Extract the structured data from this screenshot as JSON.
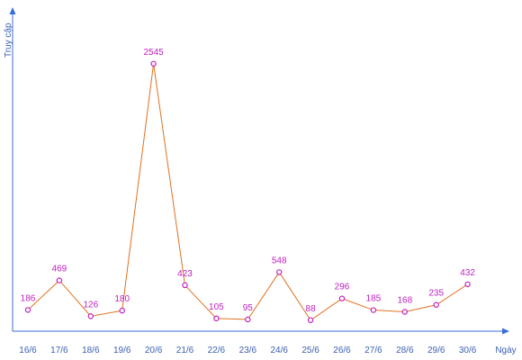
{
  "chart_data": {
    "type": "line",
    "title": "",
    "xlabel": "Ngày",
    "ylabel": "Truy cập",
    "categories": [
      "16/6",
      "17/6",
      "18/6",
      "19/6",
      "20/6",
      "21/6",
      "22/6",
      "23/6",
      "24/6",
      "25/6",
      "26/6",
      "27/6",
      "28/6",
      "29/6",
      "30/6"
    ],
    "series": [
      {
        "values": [
          186,
          469,
          126,
          180,
          2545,
          423,
          105,
          95,
          548,
          88,
          296,
          185,
          168,
          235,
          432
        ]
      }
    ],
    "ylim": [
      0,
      2850
    ],
    "grid": false,
    "legend": "none",
    "colors": {
      "line": "#e07020",
      "marker": "#c020c0",
      "axis": "#3a6ed8",
      "label": "#c020c0",
      "tick": "#3a5fb0"
    }
  }
}
